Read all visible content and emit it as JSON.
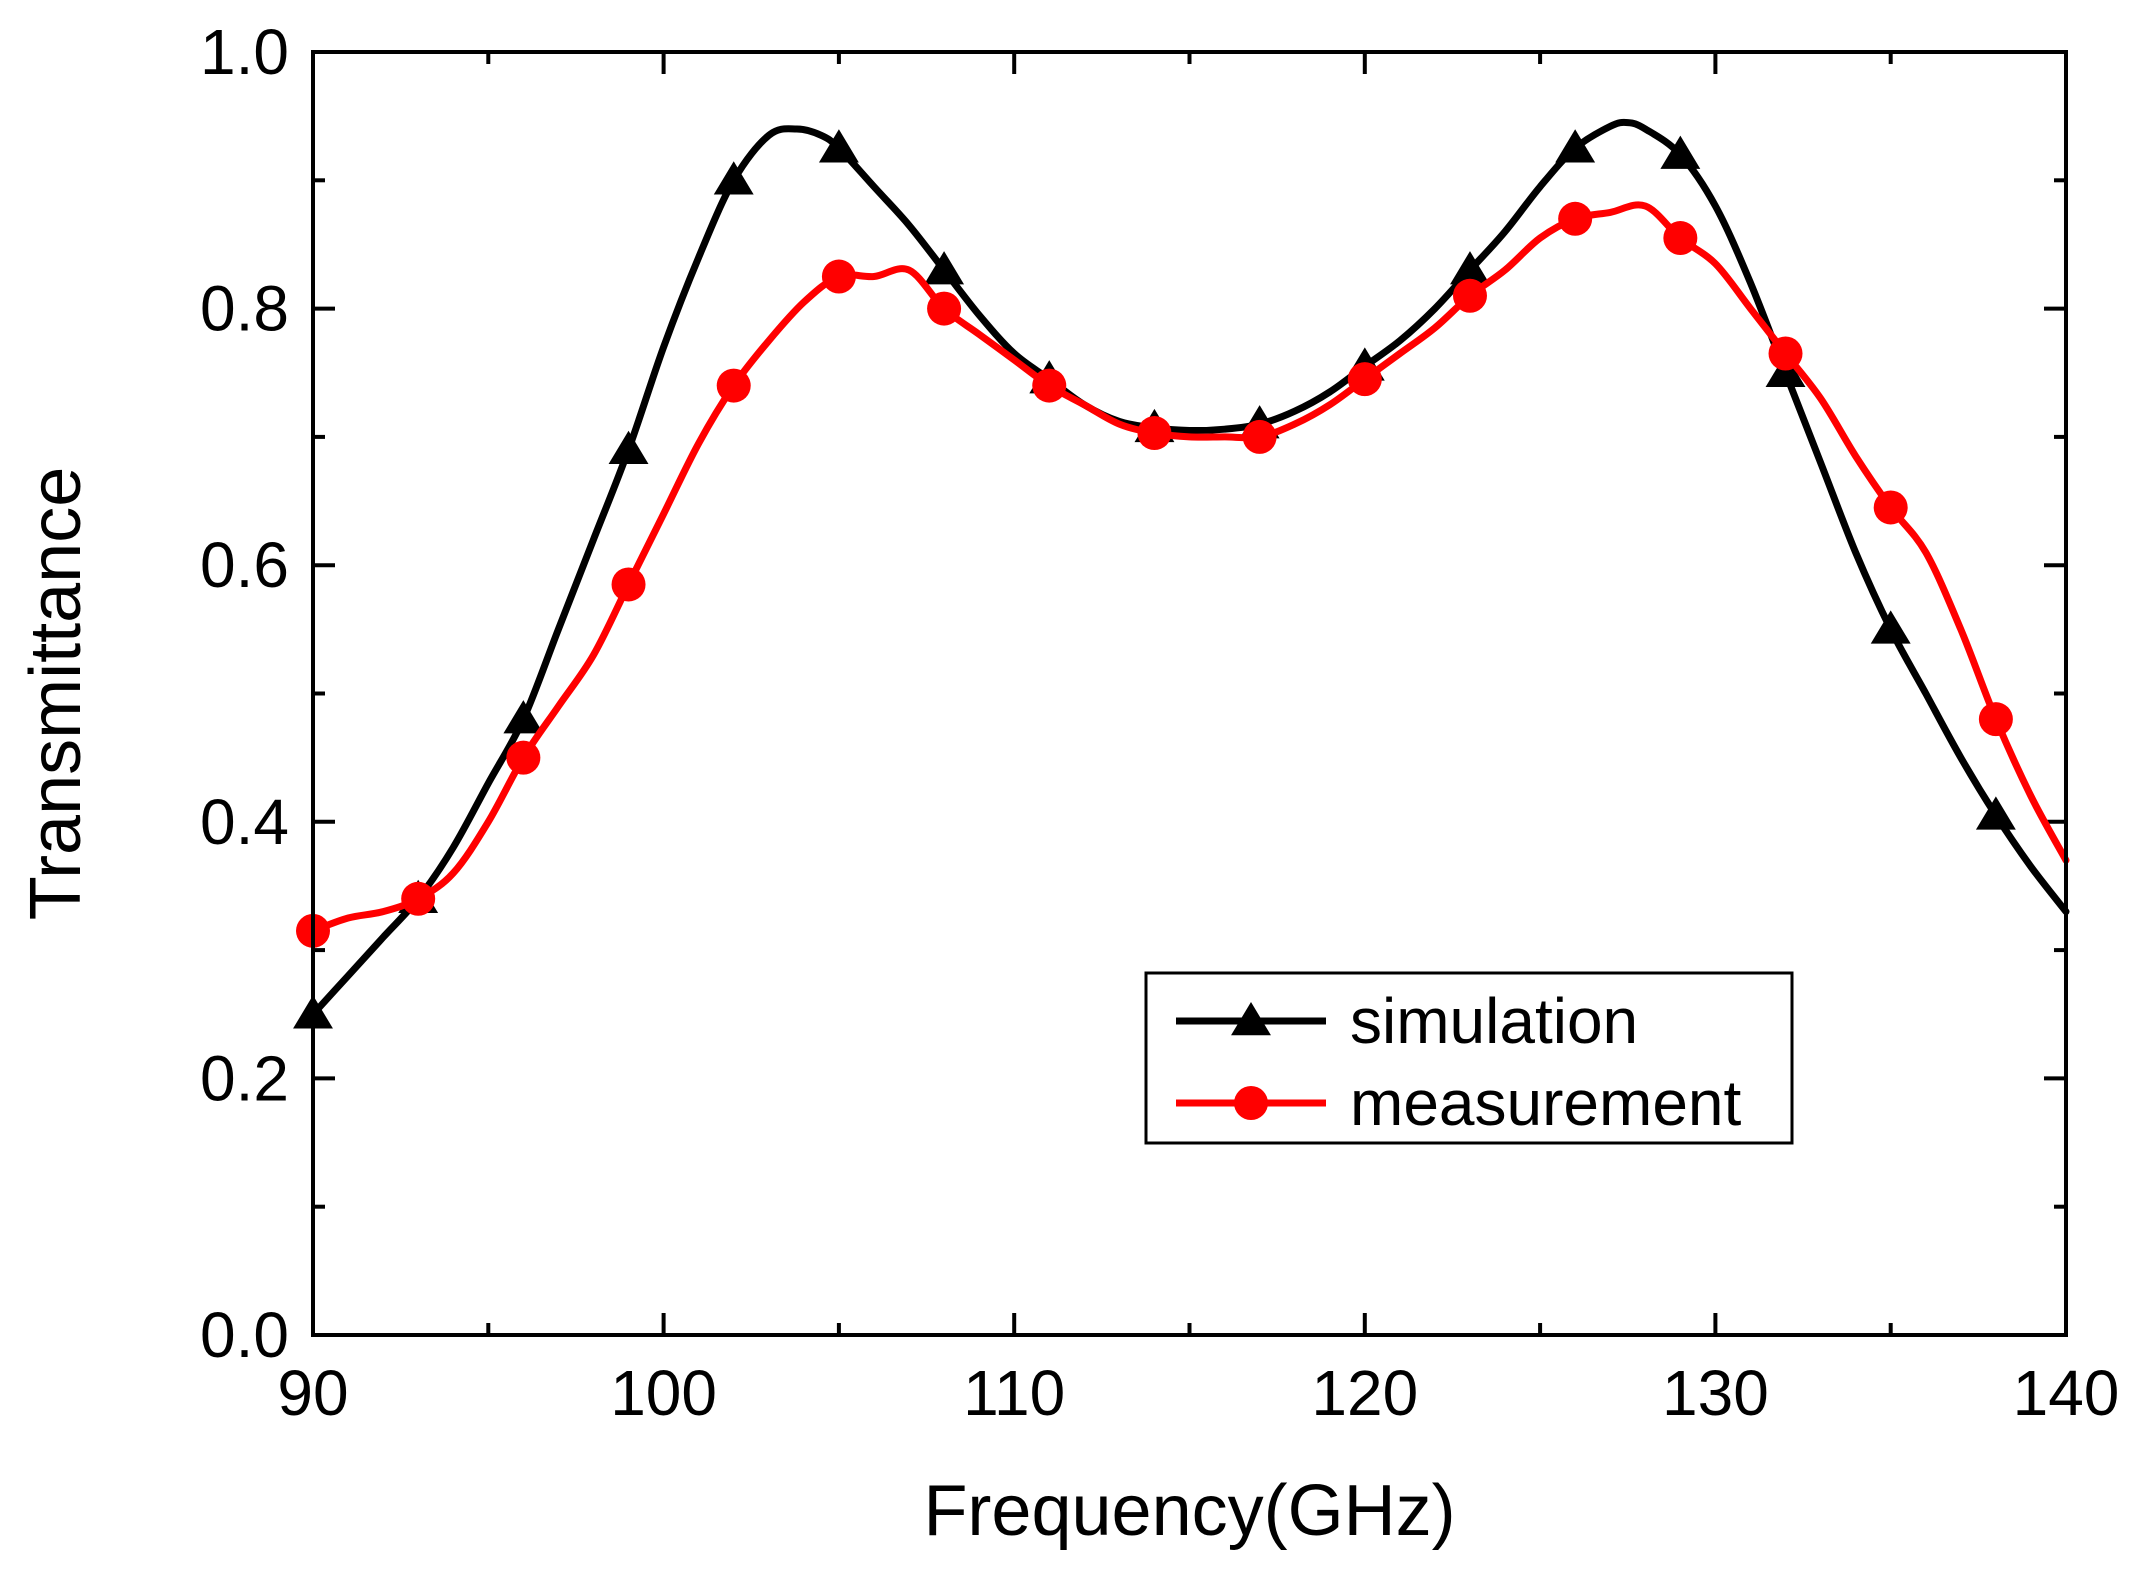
{
  "chart_data": {
    "type": "line",
    "title": "",
    "xlabel": "Frequency(GHz)",
    "ylabel": "Transmittance",
    "xlim": [
      90,
      140
    ],
    "ylim": [
      0.0,
      1.0
    ],
    "xticks": [
      90,
      100,
      110,
      120,
      130,
      140
    ],
    "xtick_labels": [
      "90",
      "100",
      "110",
      "120",
      "130",
      "140"
    ],
    "yticks": [
      0.0,
      0.2,
      0.4,
      0.6,
      0.8,
      1.0
    ],
    "ytick_labels": [
      "0.0",
      "0.2",
      "0.4",
      "0.6",
      "0.8",
      "1.0"
    ],
    "legend_position": "center-right",
    "series": [
      {
        "name": "simulation",
        "color": "#000000",
        "marker": "triangle",
        "x": [
          90,
          91,
          92,
          93,
          94,
          95,
          96,
          97,
          98,
          99,
          100,
          101,
          102,
          103,
          103.8,
          104.5,
          105,
          106,
          107,
          108,
          109,
          110,
          111,
          112,
          113,
          114,
          115,
          116,
          117,
          118,
          119,
          120,
          121,
          122,
          123,
          124,
          125,
          126,
          127,
          127.5,
          128,
          129,
          130,
          131,
          132,
          133,
          134,
          135,
          136,
          137,
          138,
          139,
          140
        ],
        "y": [
          0.25,
          0.28,
          0.31,
          0.34,
          0.38,
          0.43,
          0.48,
          0.55,
          0.62,
          0.69,
          0.77,
          0.84,
          0.9,
          0.935,
          0.94,
          0.935,
          0.925,
          0.895,
          0.865,
          0.83,
          0.795,
          0.765,
          0.745,
          0.725,
          0.712,
          0.707,
          0.705,
          0.706,
          0.71,
          0.72,
          0.735,
          0.755,
          0.775,
          0.8,
          0.83,
          0.86,
          0.895,
          0.925,
          0.942,
          0.945,
          0.94,
          0.92,
          0.88,
          0.82,
          0.75,
          0.68,
          0.61,
          0.55,
          0.5,
          0.45,
          0.405,
          0.365,
          0.33
        ],
        "marker_x": [
          90,
          93,
          96,
          99,
          102,
          105,
          108,
          111,
          114,
          117,
          120,
          123,
          126,
          129,
          132,
          135,
          138
        ],
        "marker_y": [
          0.25,
          0.34,
          0.48,
          0.69,
          0.9,
          0.925,
          0.83,
          0.745,
          0.707,
          0.71,
          0.755,
          0.83,
          0.925,
          0.92,
          0.75,
          0.55,
          0.405
        ]
      },
      {
        "name": "measurement",
        "color": "#ff0000",
        "marker": "circle",
        "x": [
          90,
          91,
          92,
          93,
          94,
          95,
          96,
          97,
          98,
          99,
          100,
          101,
          102,
          103,
          104,
          105,
          106,
          107,
          108,
          109,
          110,
          111,
          112,
          113,
          114,
          115,
          116,
          117,
          118,
          119,
          120,
          121,
          122,
          123,
          124,
          125,
          126,
          127,
          128,
          129,
          130,
          131,
          132,
          133,
          134,
          135,
          136,
          137,
          138,
          139,
          140
        ],
        "y": [
          0.315,
          0.325,
          0.33,
          0.34,
          0.36,
          0.4,
          0.45,
          0.49,
          0.53,
          0.585,
          0.64,
          0.695,
          0.74,
          0.775,
          0.805,
          0.825,
          0.825,
          0.83,
          0.8,
          0.78,
          0.76,
          0.74,
          0.725,
          0.71,
          0.703,
          0.7,
          0.7,
          0.7,
          0.71,
          0.725,
          0.745,
          0.765,
          0.785,
          0.81,
          0.83,
          0.855,
          0.87,
          0.875,
          0.88,
          0.855,
          0.835,
          0.8,
          0.765,
          0.73,
          0.685,
          0.645,
          0.61,
          0.55,
          0.48,
          0.42,
          0.37
        ],
        "marker_x": [
          90,
          93,
          96,
          99,
          102,
          105,
          108,
          111,
          114,
          117,
          120,
          123,
          126,
          129,
          132,
          135,
          138
        ],
        "marker_y": [
          0.315,
          0.34,
          0.45,
          0.585,
          0.74,
          0.825,
          0.8,
          0.74,
          0.703,
          0.7,
          0.745,
          0.81,
          0.87,
          0.855,
          0.765,
          0.645,
          0.48
        ]
      }
    ]
  }
}
